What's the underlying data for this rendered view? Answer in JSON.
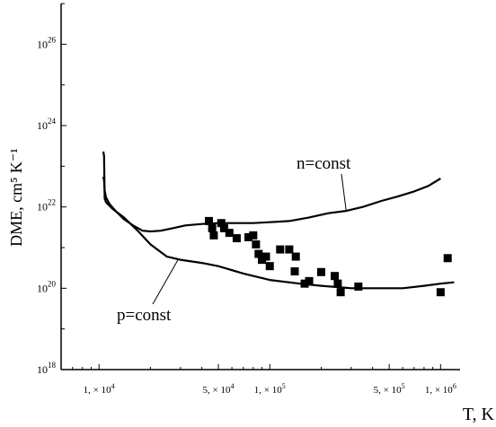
{
  "chart_data": {
    "type": "scatter",
    "ylabel": "DME, cm⁵ K⁻¹",
    "xlabel": "T, K",
    "x_scale": "log",
    "y_scale": "log",
    "xlim": [
      6000,
      1300000
    ],
    "ylim": [
      1e+18,
      1e+27
    ],
    "grid": false,
    "y_ticks": [
      {
        "value": 1e+18,
        "base": "10",
        "exp": "18"
      },
      {
        "value": 1e+20,
        "base": "10",
        "exp": "20"
      },
      {
        "value": 1e+22,
        "base": "10",
        "exp": "22"
      },
      {
        "value": 1e+24,
        "base": "10",
        "exp": "24"
      },
      {
        "value": 1e+26,
        "base": "10",
        "exp": "26"
      }
    ],
    "x_ticks": [
      {
        "value": 10000,
        "mant": "1, × 10",
        "exp": "4"
      },
      {
        "value": 50000,
        "mant": "5, × 10",
        "exp": "4"
      },
      {
        "value": 100000,
        "mant": "1, × 10",
        "exp": "5"
      },
      {
        "value": 500000,
        "mant": "5, × 10",
        "exp": "5"
      },
      {
        "value": 1000000,
        "mant": "1, × 10",
        "exp": "6"
      }
    ],
    "series": [
      {
        "name": "n=const",
        "style": "line",
        "x": [
          10600,
          10700,
          10800,
          11000,
          11500,
          12500,
          14000,
          16000,
          18000,
          20000,
          23000,
          27000,
          32000,
          40000,
          50000,
          65000,
          80000,
          100000,
          130000,
          170000,
          220000,
          280000,
          350000,
          450000,
          560000,
          700000,
          850000,
          1000000
        ],
        "y": [
          5.5e+22,
          4.5e+22,
          2.5e+22,
          1.7e+22,
          1.2e+22,
          8e+21,
          5e+21,
          3.4e+21,
          2.6e+21,
          2.5e+21,
          2.6e+21,
          3e+21,
          3.5e+21,
          3.8e+21,
          4e+21,
          4e+21,
          4e+21,
          4.2e+21,
          4.5e+21,
          5.5e+21,
          7e+21,
          8e+21,
          1e+22,
          1.4e+22,
          1.8e+22,
          2.4e+22,
          3.3e+22,
          5e+22
        ]
      },
      {
        "name": "p=const",
        "style": "line",
        "x": [
          10600,
          10700,
          10800,
          11000,
          12000,
          14000,
          17000,
          20000,
          25000,
          30000,
          40000,
          50000,
          70000,
          100000,
          150000,
          200000,
          300000,
          450000,
          600000,
          800000,
          1000000,
          1200000
        ],
        "y": [
          2.3e+23,
          1.8e+23,
          1.6e+22,
          1.3e+22,
          9e+21,
          5.5e+21,
          2.5e+21,
          1.2e+21,
          6e+20,
          5e+20,
          4.2e+20,
          3.5e+20,
          2.3e+20,
          1.6e+20,
          1.3e+20,
          1.15e+20,
          1e+20,
          1e+20,
          1e+20,
          1.15e+20,
          1.3e+20,
          1.4e+20
        ]
      },
      {
        "name": "",
        "style": "markers",
        "x": [
          44000,
          46000,
          47000,
          52000,
          54000,
          58000,
          64000,
          75000,
          80000,
          83000,
          86000,
          90000,
          95000,
          100000,
          115000,
          130000,
          140000,
          142000,
          160000,
          170000,
          200000,
          240000,
          250000,
          260000,
          330000,
          1000000,
          1100000
        ],
        "y": [
          4.5e+21,
          3e+21,
          2e+21,
          4e+21,
          3e+21,
          2.3e+21,
          1.7e+21,
          1.8e+21,
          2e+21,
          1.2e+21,
          7e+20,
          5e+20,
          6e+20,
          3.5e+20,
          9e+20,
          9e+20,
          2.6e+20,
          6e+20,
          1.3e+20,
          1.5e+20,
          2.5e+20,
          2e+20,
          1.3e+20,
          8e+19,
          1.1e+20,
          8e+19,
          5.5e+20
        ]
      }
    ],
    "annotations": [
      {
        "text": "n=const",
        "points_to": {
          "x": 280000,
          "y": 8e+21
        }
      },
      {
        "text": "p=const",
        "points_to": {
          "x": 29000,
          "y": 5e+20
        }
      }
    ]
  }
}
